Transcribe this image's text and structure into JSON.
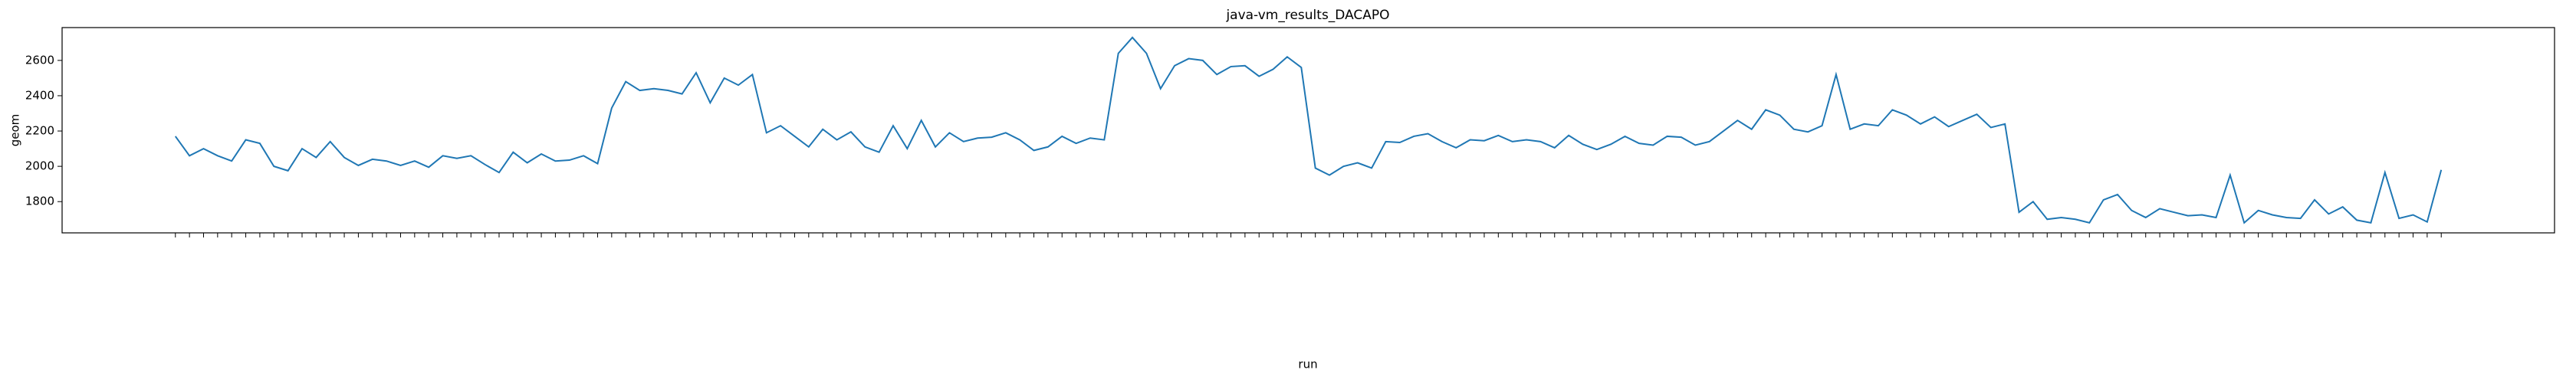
{
  "chart_data": {
    "type": "line",
    "title": "java-vm_results_DACAPO",
    "x_label": "run",
    "y_label": "geom",
    "categories": [
      null,
      null,
      null,
      null,
      null,
      null,
      null,
      null,
      null,
      null,
      null,
      null,
      null,
      null,
      null,
      null,
      null,
      null,
      null,
      null,
      null,
      null,
      null,
      null,
      null,
      null,
      null,
      null,
      null,
      null,
      null,
      null,
      null,
      null,
      null,
      null,
      null,
      null,
      null,
      null,
      null,
      null,
      null,
      null,
      null,
      null,
      null,
      null,
      null,
      null,
      null,
      null,
      null,
      null,
      null,
      null,
      null,
      null,
      null,
      null,
      null,
      null,
      null,
      null,
      null,
      null,
      null,
      null,
      null,
      null,
      null,
      null,
      null,
      null,
      null,
      null,
      null,
      null,
      null,
      null,
      null,
      null,
      null,
      null,
      null,
      null,
      null,
      null,
      null,
      null,
      null,
      null,
      null,
      null,
      null,
      null,
      null,
      null,
      null,
      null,
      null,
      null,
      null,
      null,
      null,
      null,
      null,
      null,
      null,
      null,
      null,
      null,
      null,
      null,
      null,
      null,
      null,
      null,
      null,
      null,
      null,
      null,
      null,
      null,
      null,
      null,
      null,
      null,
      null,
      null,
      null,
      null,
      null,
      null,
      null,
      null,
      null,
      null,
      null,
      null,
      null,
      null,
      null,
      null,
      null,
      null,
      null,
      null,
      null,
      null,
      null,
      null,
      null,
      null,
      null,
      null,
      null,
      null,
      null,
      null,
      null,
      null
    ],
    "series": [
      {
        "name": null,
        "color": "#1f77b4",
        "values": [
          2170,
          2060,
          2100,
          2060,
          2030,
          2150,
          2130,
          2000,
          1975,
          2100,
          2050,
          2140,
          2050,
          2005,
          2040,
          2030,
          2005,
          2030,
          1995,
          2060,
          2045,
          2060,
          2010,
          1965,
          2080,
          2020,
          2070,
          2030,
          2035,
          2060,
          2015,
          2330,
          2480,
          2430,
          2440,
          2430,
          2410,
          2530,
          2360,
          2500,
          2460,
          2520,
          2190,
          2230,
          2170,
          2110,
          2210,
          2150,
          2195,
          2110,
          2080,
          2230,
          2100,
          2260,
          2110,
          2190,
          2140,
          2160,
          2165,
          2190,
          2150,
          2090,
          2110,
          2170,
          2130,
          2160,
          2150,
          2640,
          2730,
          2640,
          2440,
          2570,
          2610,
          2600,
          2520,
          2565,
          2570,
          2510,
          2550,
          2620,
          2560,
          1990,
          1950,
          2000,
          2020,
          1990,
          2140,
          2135,
          2170,
          2185,
          2140,
          2105,
          2150,
          2145,
          2175,
          2140,
          2150,
          2140,
          2105,
          2175,
          2125,
          2095,
          2125,
          2170,
          2130,
          2120,
          2170,
          2165,
          2120,
          2140,
          2200,
          2260,
          2210,
          2320,
          2290,
          2210,
          2195,
          2230,
          2520,
          2210,
          2240,
          2230,
          2320,
          2290,
          2240,
          2280,
          2225,
          2260,
          2295,
          2220,
          2240,
          1740,
          1800,
          1700,
          1710,
          1700,
          1680,
          1810,
          1840,
          1750,
          1710,
          1760,
          1740,
          1720,
          1725,
          1710,
          1950,
          1680,
          1750,
          1725,
          1710,
          1705,
          1810,
          1730,
          1770,
          1695,
          1680,
          1965,
          1705,
          1725,
          1685,
          1980
        ]
      }
    ],
    "ylim": [
      1623,
      2786
    ],
    "yticks": [
      1800,
      2000,
      2200,
      2400,
      2600
    ],
    "grid": false
  }
}
